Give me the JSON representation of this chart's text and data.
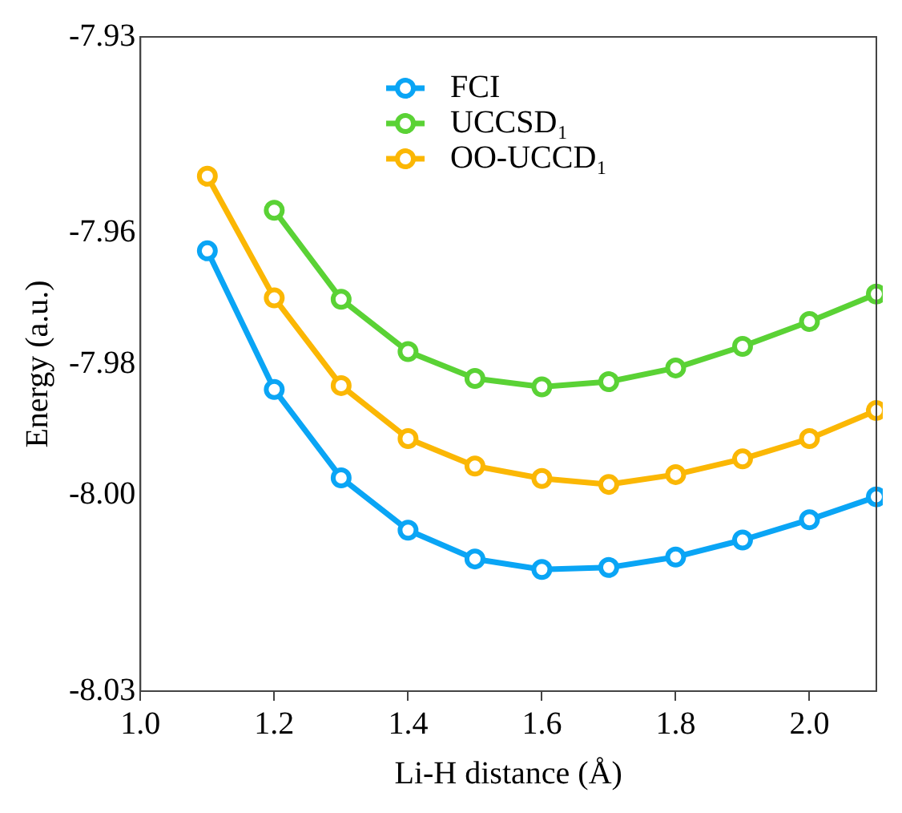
{
  "chart_data": {
    "type": "line",
    "xlabel": "Li-H distance (Å)",
    "ylabel": "Energy (a.u.)",
    "xlim": [
      1.0,
      2.1
    ],
    "xticks": [
      {
        "value": 1,
        "label": "1.0"
      },
      1.2,
      1.4,
      1.6,
      1.8,
      {
        "value": 2,
        "label": "2.0"
      }
    ],
    "ylim": [
      -8.03,
      -7.93
    ],
    "yticks": [
      -8.03,
      {
        "value": -8,
        "label": "-8.00"
      },
      -7.98,
      -7.96,
      -7.93
    ],
    "grid": false,
    "legend": "top",
    "marker": "circle",
    "line_style": "solid",
    "series": [
      {
        "name": "FCI",
        "color": "#0aa5f5",
        "x": [
          1.1,
          1.2,
          1.3,
          1.4,
          1.5,
          1.6,
          1.7,
          1.8,
          1.9,
          2.0,
          2.1
        ],
        "values": [
          -7.9627,
          -7.9839,
          -7.9974,
          -8.0054,
          -8.0098,
          -8.0114,
          -8.0111,
          -8.0095,
          -8.0069,
          -8.0038,
          -8.0003
        ]
      },
      {
        "name": "UCCSD₁",
        "color": "#5ad235",
        "x": [
          1.2,
          1.3,
          1.4,
          1.5,
          1.6,
          1.7,
          1.8,
          1.9,
          2.0,
          2.1
        ],
        "values": [
          -7.9565,
          -7.9701,
          -7.9781,
          -7.9822,
          -7.9835,
          -7.9827,
          -7.9806,
          -7.9773,
          -7.9735,
          -7.9693
        ]
      },
      {
        "name": "OO-UCCD₁",
        "color": "#fbb704",
        "x": [
          1.1,
          1.2,
          1.3,
          1.4,
          1.5,
          1.6,
          1.7,
          1.8,
          1.9,
          2.0,
          2.1
        ],
        "values": [
          -7.9513,
          -7.9699,
          -7.9833,
          -7.9914,
          -7.9956,
          -7.9975,
          -7.9984,
          -7.9969,
          -7.9945,
          -7.9914,
          -7.9871
        ]
      }
    ]
  }
}
